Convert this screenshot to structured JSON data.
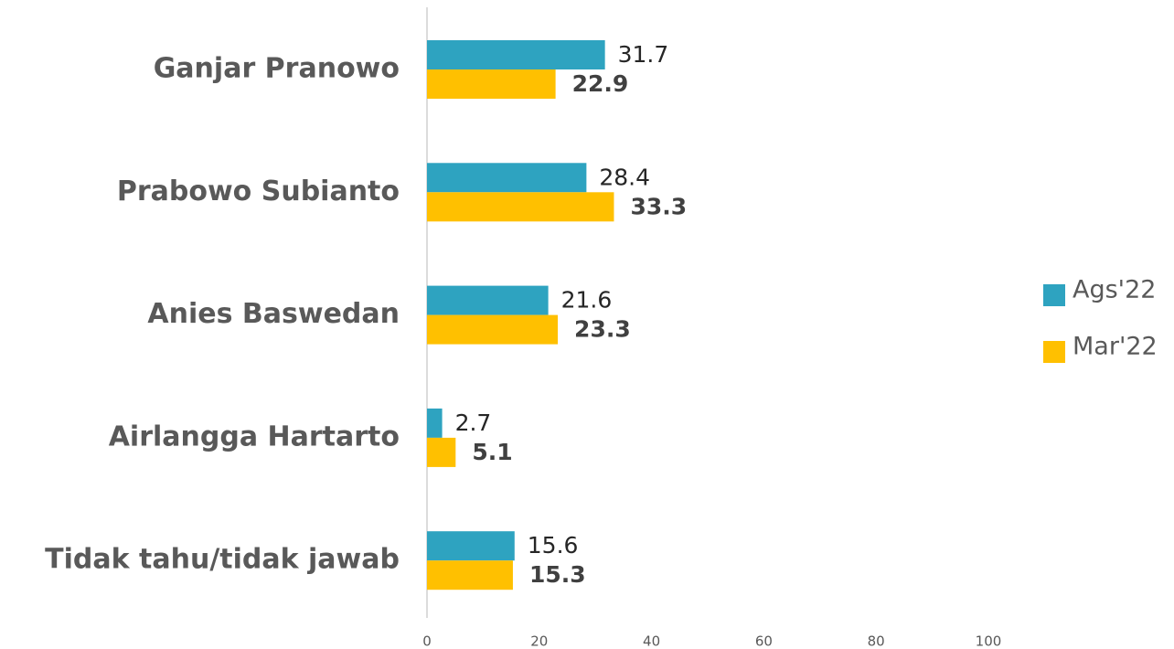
{
  "chart_data": {
    "type": "bar",
    "orientation": "horizontal",
    "categories": [
      "Ganjar Pranowo",
      "Prabowo Subianto",
      "Anies Baswedan",
      "Airlangga Hartarto",
      "Tidak tahu/tidak jawab"
    ],
    "series": [
      {
        "name": "Ags'22",
        "color": "#2ea3c0",
        "values": [
          31.7,
          28.4,
          21.6,
          2.7,
          15.6
        ]
      },
      {
        "name": "Mar'22",
        "color": "#ffc000",
        "values": [
          22.9,
          33.3,
          23.3,
          5.1,
          15.3
        ]
      }
    ],
    "xlim": [
      0,
      100
    ],
    "xticks": [
      0,
      20,
      40,
      60,
      80,
      100
    ],
    "legend": "right"
  }
}
